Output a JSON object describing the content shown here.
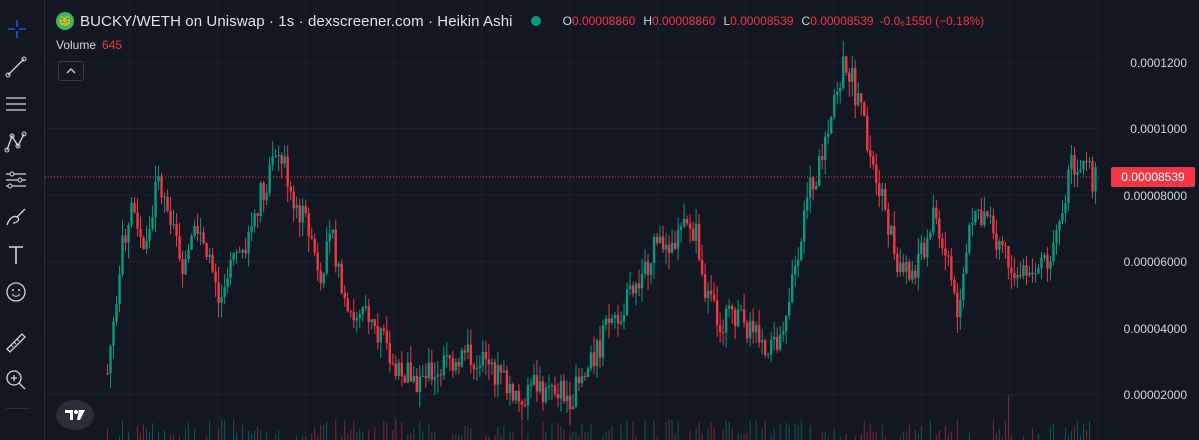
{
  "header": {
    "title": "BUCKY/WETH on Uniswap · 1s · dexscreener.com · Heikin Ashi",
    "ohlc": {
      "o_label": "O",
      "o_value": "0.00008860",
      "h_label": "H",
      "h_value": "0.00008860",
      "l_label": "L",
      "l_value": "0.00008539",
      "c_label": "C",
      "c_value": "0.00008539",
      "change": "-0.0₆1550 (−0.18%)"
    }
  },
  "volume": {
    "label": "Volume",
    "value": "645"
  },
  "price_axis": {
    "ticks": [
      "0.0001200",
      "0.0001000",
      "0.00008000",
      "0.00006000",
      "0.00004000",
      "0.00002000"
    ],
    "current_price": "0.00008539"
  },
  "toolbar": {
    "tools": [
      "crosshair-icon",
      "trendline-icon",
      "fib-icon",
      "pattern-icon",
      "forecast-icon",
      "brush-icon",
      "text-icon",
      "emoji-icon",
      "ruler-icon",
      "zoom-icon"
    ]
  },
  "colors": {
    "up": "#089981",
    "down": "#f23645",
    "background": "#131722"
  },
  "chart_data": {
    "type": "candlestick",
    "ylim": [
      1.2e-05,
      0.000126
    ],
    "price_path": [
      2.5e-05,
      6e-05,
      7.9e-05,
      6.2e-05,
      8.5e-05,
      7.2e-05,
      6e-05,
      7.5e-05,
      6.4e-05,
      4.5e-05,
      6e-05,
      6.4e-05,
      7.8e-05,
      8.8e-05,
      9.2e-05,
      7.8e-05,
      7e-05,
      5.7e-05,
      6.6e-05,
      5e-05,
      4e-05,
      4.5e-05,
      3.5e-05,
      2.8e-05,
      2.5e-05,
      2.2e-05,
      2.5e-05,
      2.8e-05,
      3e-05,
      3.1e-05,
      2.8e-05,
      2.5e-05,
      2.2e-05,
      1.7e-05,
      2.2e-05,
      2e-05,
      1.9e-05,
      1.8e-05,
      2.2e-05,
      3e-05,
      4e-05,
      4.5e-05,
      5e-05,
      5.7e-05,
      7e-05,
      6.4e-05,
      6.9e-05,
      7e-05,
      4.8e-05,
      4e-05,
      4.5e-05,
      4e-05,
      3.5e-05,
      3.4e-05,
      3.3e-05,
      6e-05,
      8e-05,
      9e-05,
      0.00011,
      0.000122,
      0.00011,
      9.5e-05,
      8e-05,
      6.2e-05,
      5.5e-05,
      6e-05,
      7.5e-05,
      6.3e-05,
      4.5e-05,
      7.5e-05,
      7.5e-05,
      6.8e-05,
      6.2e-05,
      5.5e-05,
      5.2e-05,
      6e-05,
      7e-05,
      9e-05,
      8.8e-05,
      8.5e-05
    ]
  }
}
